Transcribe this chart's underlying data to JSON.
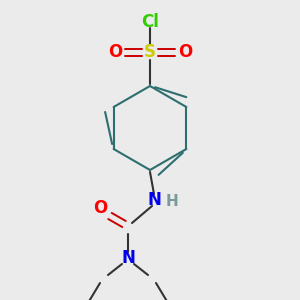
{
  "bg_color": "#ebebeb",
  "atom_colors": {
    "Cl": "#33cc00",
    "S": "#cccc00",
    "O": "#ff0000",
    "N": "#0000ee",
    "NH_H": "#7a9a9a",
    "C": "#000000",
    "bond": "#2d6e6e"
  },
  "ring_color": "#2d6e6e",
  "bond_color": "#333333"
}
